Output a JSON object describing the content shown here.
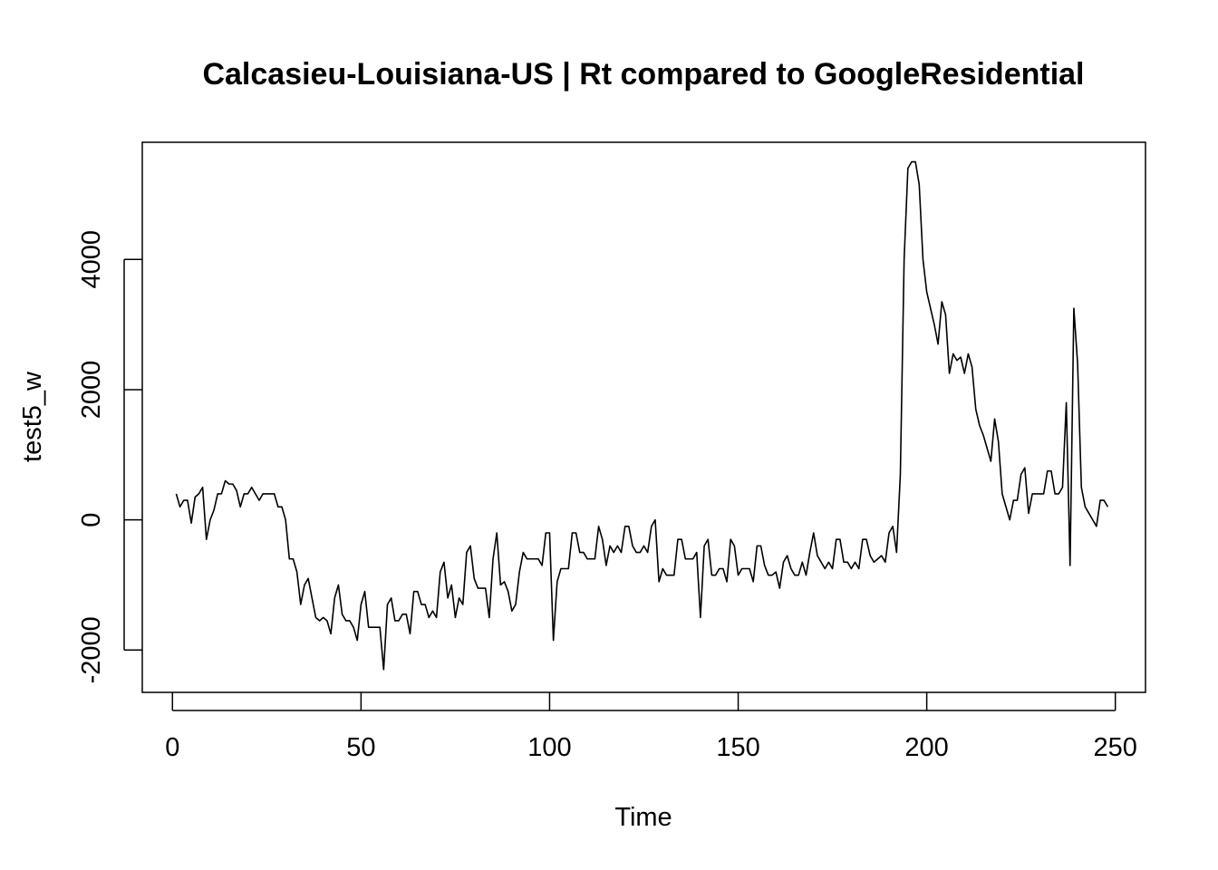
{
  "chart_data": {
    "type": "line",
    "title": "Calcasieu-Louisiana-US | Rt compared to GoogleResidential",
    "xlabel": "Time",
    "ylabel": "test5_w",
    "xlim": [
      -8,
      258
    ],
    "ylim": [
      -2650,
      5800
    ],
    "x_ticks": [
      0,
      50,
      100,
      150,
      200,
      250
    ],
    "y_ticks": [
      -2000,
      0,
      2000,
      4000
    ],
    "grid": false,
    "legend": "none",
    "x_start": 1,
    "series": [
      {
        "values": [
          400,
          200,
          300,
          300,
          -50,
          350,
          400,
          500,
          -300,
          0,
          150,
          400,
          400,
          600,
          550,
          550,
          450,
          200,
          400,
          400,
          500,
          400,
          300,
          400,
          400,
          400,
          400,
          200,
          200,
          0,
          -600,
          -600,
          -800,
          -1300,
          -1000,
          -900,
          -1200,
          -1500,
          -1550,
          -1500,
          -1550,
          -1750,
          -1200,
          -1000,
          -1450,
          -1550,
          -1550,
          -1650,
          -1850,
          -1300,
          -1100,
          -1650,
          -1650,
          -1650,
          -1650,
          -2300,
          -1300,
          -1200,
          -1550,
          -1550,
          -1450,
          -1450,
          -1750,
          -1100,
          -1100,
          -1300,
          -1300,
          -1500,
          -1400,
          -1500,
          -800,
          -650,
          -1200,
          -1000,
          -1500,
          -1200,
          -1300,
          -500,
          -400,
          -900,
          -1050,
          -1050,
          -1050,
          -1500,
          -600,
          -200,
          -1000,
          -950,
          -1100,
          -1400,
          -1300,
          -800,
          -500,
          -600,
          -600,
          -600,
          -600,
          -700,
          -200,
          -200,
          -1850,
          -950,
          -750,
          -750,
          -750,
          -200,
          -200,
          -500,
          -500,
          -600,
          -600,
          -600,
          -100,
          -300,
          -700,
          -400,
          -500,
          -400,
          -500,
          -100,
          -100,
          -400,
          -500,
          -500,
          -400,
          -500,
          -100,
          0,
          -950,
          -750,
          -850,
          -850,
          -850,
          -300,
          -300,
          -600,
          -600,
          -600,
          -500,
          -1500,
          -400,
          -300,
          -850,
          -850,
          -750,
          -750,
          -950,
          -300,
          -400,
          -850,
          -750,
          -750,
          -750,
          -950,
          -400,
          -400,
          -700,
          -850,
          -850,
          -800,
          -1050,
          -650,
          -550,
          -750,
          -850,
          -850,
          -650,
          -850,
          -500,
          -200,
          -550,
          -650,
          -750,
          -650,
          -750,
          -300,
          -300,
          -650,
          -650,
          -750,
          -650,
          -750,
          -300,
          -300,
          -550,
          -650,
          -600,
          -550,
          -650,
          -200,
          -100,
          -500,
          700,
          4000,
          5400,
          5500,
          5500,
          5150,
          4000,
          3500,
          3250,
          3000,
          2700,
          3350,
          3150,
          2250,
          2550,
          2450,
          2500,
          2250,
          2550,
          2350,
          1700,
          1450,
          1300,
          1100,
          900,
          1550,
          1200,
          400,
          200,
          0,
          300,
          300,
          700,
          800,
          100,
          400,
          400,
          400,
          400,
          750,
          750,
          400,
          400,
          500,
          1800,
          -700,
          3250,
          2400,
          500,
          200,
          100,
          0,
          -100,
          300,
          300,
          200
        ]
      }
    ]
  }
}
